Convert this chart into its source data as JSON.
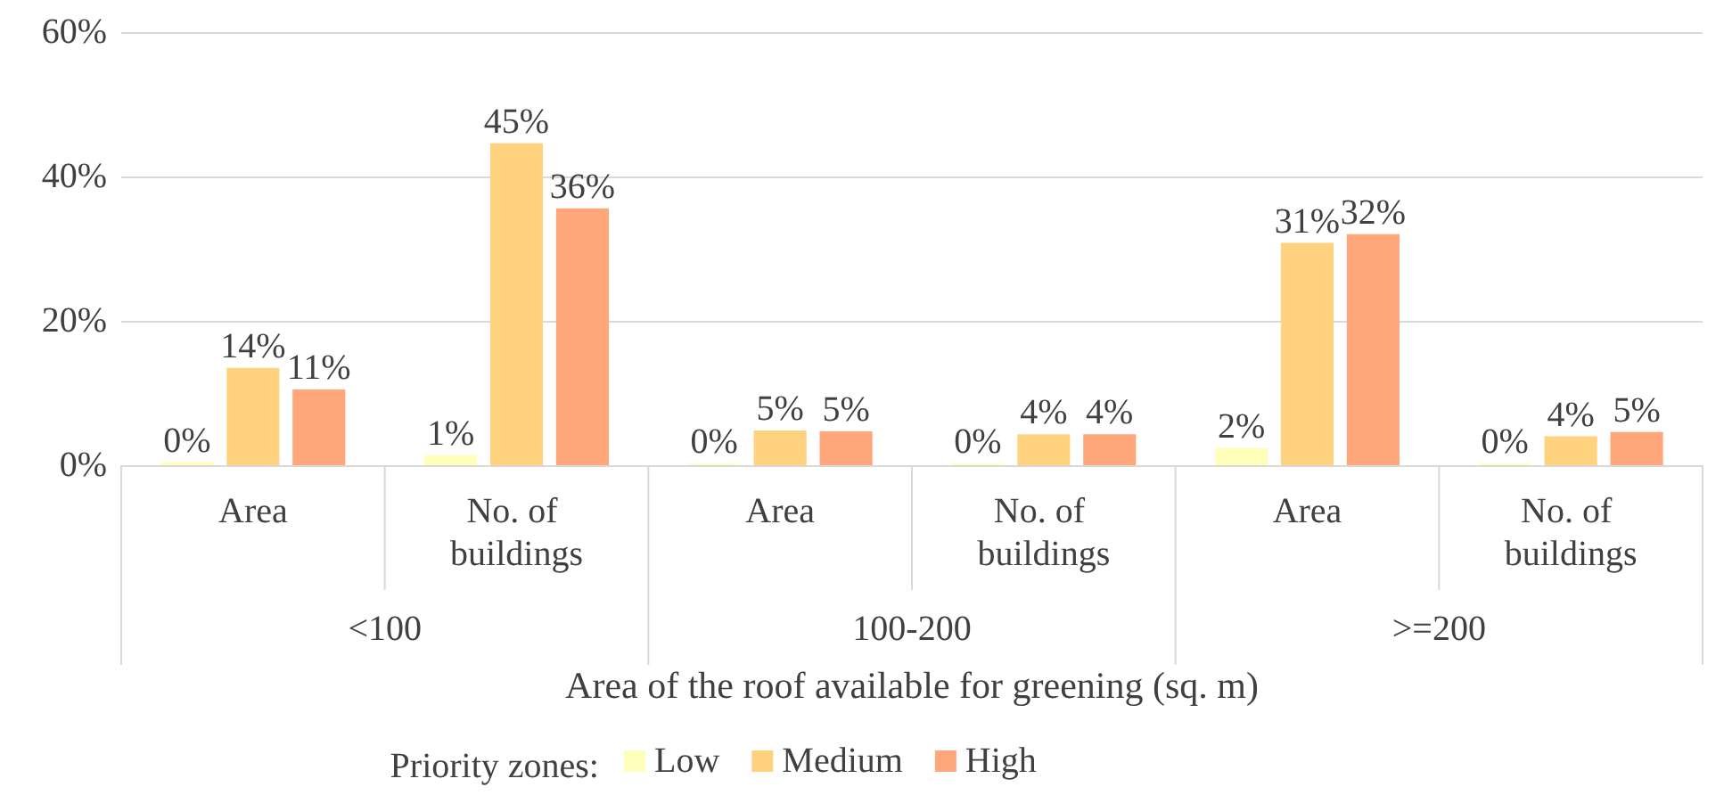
{
  "chart_data": {
    "type": "bar",
    "xlabel": "Area of the roof available for greening (sq. m)",
    "legend_title": "Priority zones:",
    "categories": [
      "Area",
      "No. of buildings",
      "Area",
      "No. of buildings",
      "Area",
      "No. of buildings"
    ],
    "series": [
      {
        "name": "Low",
        "color": "#ffffbb",
        "values": [
          0.4,
          1.4,
          0.2,
          0.2,
          2.4,
          0.2
        ],
        "value_labels": [
          "0%",
          "1%",
          "0%",
          "0%",
          "2%",
          "0%"
        ]
      },
      {
        "name": "Medium",
        "color": "#ffd280",
        "values": [
          13.5,
          44.6,
          4.8,
          4.3,
          30.8,
          4.0
        ],
        "value_labels": [
          "14%",
          "45%",
          "5%",
          "4%",
          "31%",
          "4%"
        ]
      },
      {
        "name": "High",
        "color": "#ffa67a",
        "values": [
          10.5,
          35.6,
          4.7,
          4.3,
          32.0,
          4.6
        ],
        "value_labels": [
          "11%",
          "36%",
          "5%",
          "4%",
          "32%",
          "5%"
        ]
      }
    ],
    "annotations": [
      "<100",
      "100-200",
      ">=200"
    ],
    "ylim": [
      0,
      60
    ],
    "yticks": [
      {
        "value": 0,
        "label": "0%"
      },
      {
        "value": 20,
        "label": "20%"
      },
      {
        "value": 40,
        "label": "40%"
      },
      {
        "value": 60,
        "label": "60%"
      }
    ],
    "grid": "y",
    "legend": "bottom"
  }
}
